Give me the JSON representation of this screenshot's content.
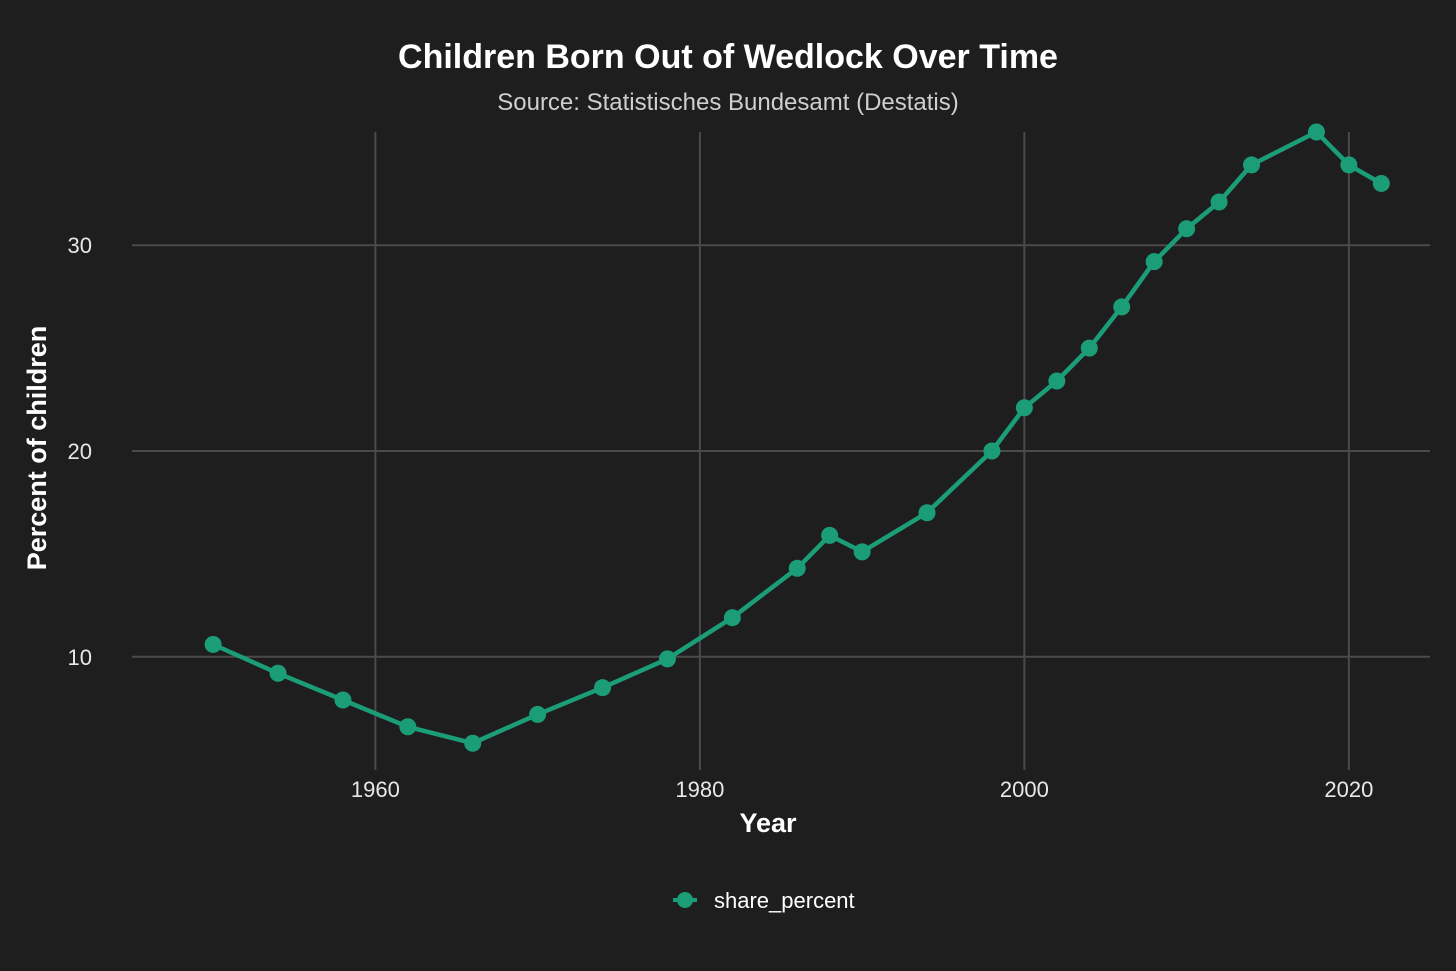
{
  "chart_data": {
    "type": "line",
    "title": "Children Born Out of Wedlock Over Time",
    "subtitle": "Source: Statistisches Bundesamt (Destatis)",
    "xlabel": "Year",
    "ylabel": "Percent of children",
    "xlim": [
      1945,
      2025
    ],
    "ylim": [
      4.5,
      35.5
    ],
    "xticks": [
      1960,
      1980,
      2000,
      2020
    ],
    "yticks": [
      10,
      20,
      30
    ],
    "grid": true,
    "legend_position": "bottom",
    "series_color": "#1b9e77",
    "background": "#1e1e1e",
    "series": [
      {
        "name": "share_percent",
        "x": [
          1950,
          1954,
          1958,
          1962,
          1966,
          1970,
          1974,
          1978,
          1982,
          1986,
          1988,
          1990,
          1994,
          1998,
          2000,
          2002,
          2004,
          2006,
          2008,
          2010,
          2012,
          2014,
          2018,
          2020,
          2022
        ],
        "y": [
          10.6,
          9.2,
          7.9,
          6.6,
          5.8,
          7.2,
          8.5,
          9.9,
          11.9,
          14.3,
          15.9,
          15.1,
          17.0,
          20.0,
          22.1,
          23.4,
          25.0,
          27.0,
          29.2,
          30.8,
          32.1,
          33.9,
          35.5,
          33.9,
          33.0
        ]
      }
    ]
  }
}
